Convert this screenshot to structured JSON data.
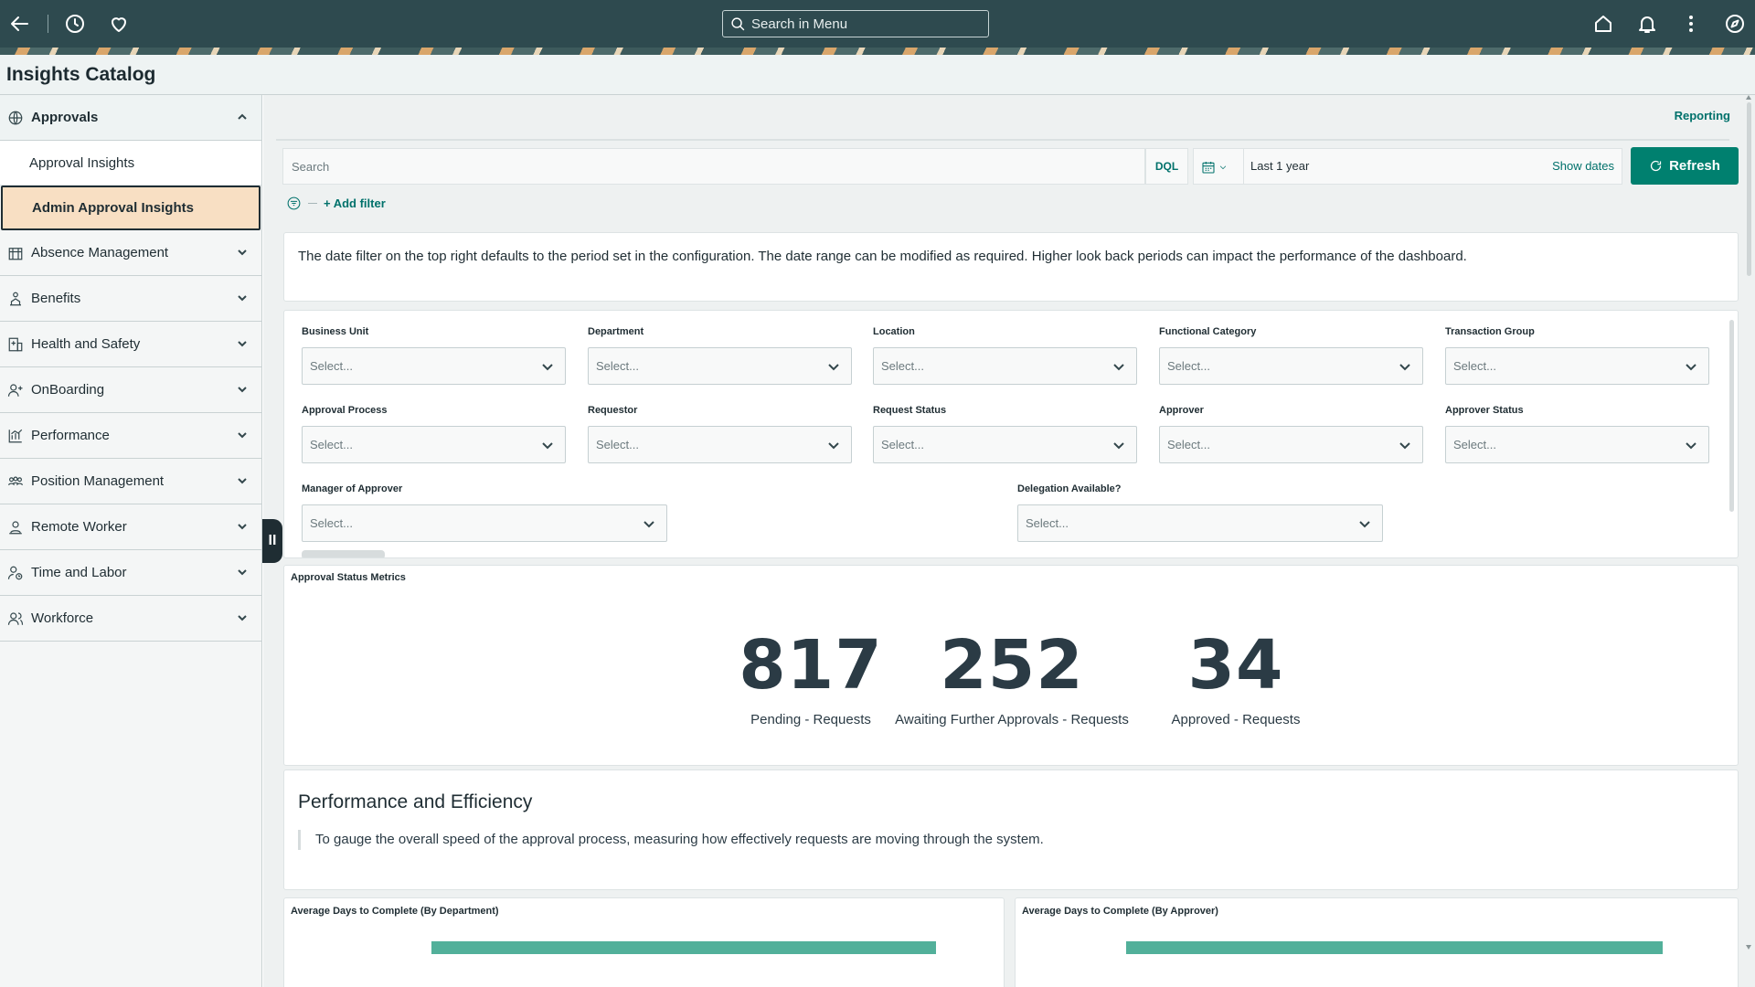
{
  "topbar": {
    "search_placeholder": "Search in Menu",
    "icons": [
      "back-arrow-icon",
      "history-icon",
      "heart-icon",
      "home-icon",
      "bell-icon",
      "more-vertical-icon",
      "compass-icon"
    ]
  },
  "header": {
    "title": "Insights Catalog"
  },
  "sidebar": {
    "expanded": {
      "label": "Approvals",
      "icon": "globe-icon"
    },
    "sub_items": [
      {
        "label": "Approval Insights",
        "active": false
      },
      {
        "label": "Admin Approval Insights",
        "active": true
      }
    ],
    "items": [
      {
        "label": "Absence Management",
        "icon": "building-icon"
      },
      {
        "label": "Benefits",
        "icon": "person-benefit-icon"
      },
      {
        "label": "Health and Safety",
        "icon": "health-building-icon"
      },
      {
        "label": "OnBoarding",
        "icon": "person-add-icon"
      },
      {
        "label": "Performance",
        "icon": "chart-icon"
      },
      {
        "label": "Position Management",
        "icon": "people-group-icon"
      },
      {
        "label": "Remote Worker",
        "icon": "person-location-icon"
      },
      {
        "label": "Time and Labor",
        "icon": "person-clock-icon"
      },
      {
        "label": "Workforce",
        "icon": "people-icon"
      }
    ],
    "handle_label": "II"
  },
  "toolbar": {
    "reporting_link": "Reporting",
    "search_placeholder": "Search",
    "dql_label": "DQL",
    "date_range": "Last 1 year",
    "show_dates": "Show dates",
    "refresh_label": "Refresh",
    "add_filter": "+ Add filter"
  },
  "notice": "The date filter on the top right defaults to the period set in the configuration. The date range can be modified as required. Higher look back periods can impact the performance of the dashboard.",
  "filters": {
    "row1": [
      "Business Unit",
      "Department",
      "Location",
      "Functional Category",
      "Transaction Group"
    ],
    "row2": [
      "Approval Process",
      "Requestor",
      "Request Status",
      "Approver",
      "Approver Status"
    ],
    "row3": [
      "Manager of Approver",
      "Delegation Available?"
    ],
    "placeholder": "Select..."
  },
  "metrics": {
    "title": "Approval Status Metrics",
    "items": [
      {
        "value": "817",
        "label": "Pending - Requests"
      },
      {
        "value": "252",
        "label": "Awaiting Further Approvals - Requests"
      },
      {
        "value": "34",
        "label": "Approved - Requests"
      }
    ]
  },
  "performance": {
    "heading": "Performance and Efficiency",
    "description": "To gauge the overall speed of the approval process, measuring how effectively requests are moving through the system."
  },
  "charts": [
    {
      "title": "Average Days to Complete (By Department)"
    },
    {
      "title": "Average Days to Complete (By Approver)"
    }
  ],
  "colors": {
    "accent": "#00806f",
    "topbar": "#2e4a4f",
    "active_item": "#f8dfc3",
    "bar": "#52b09a"
  }
}
